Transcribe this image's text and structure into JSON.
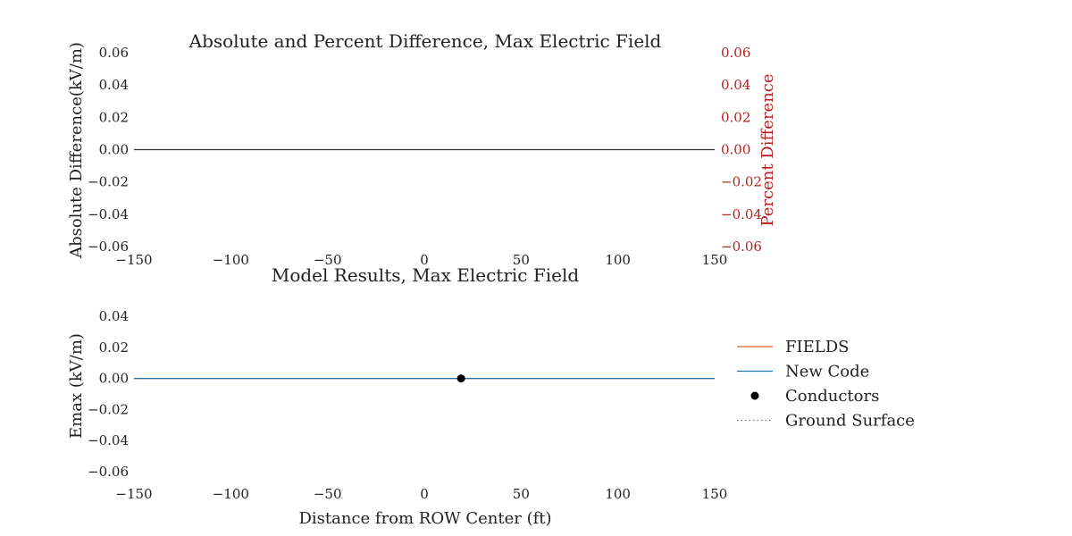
{
  "chart_data": [
    {
      "type": "line",
      "title": "Absolute and Percent Difference, Max Electric Field",
      "xlabel": "",
      "ylabel": "Absolute Difference(kV/m)",
      "y2label": "Percent Difference",
      "xlim": [
        -150,
        150
      ],
      "ylim": [
        -0.06,
        0.06
      ],
      "y2lim": [
        -0.06,
        0.06
      ],
      "xticks": [
        -150,
        -100,
        -50,
        0,
        50,
        100,
        150
      ],
      "yticks": [
        0.06,
        0.04,
        0.02,
        0.0,
        -0.02,
        -0.04,
        -0.06
      ],
      "xtick_labels": [
        "−150",
        "−100",
        "−50",
        "0",
        "50",
        "100",
        "150"
      ],
      "ytick_labels": [
        "0.06",
        "0.04",
        "0.02",
        "0.00",
        "−0.02",
        "−0.04",
        "−0.06"
      ],
      "y2tick_labels": [
        "0.06",
        "0.04",
        "0.02",
        "0.00",
        "−0.02",
        "−0.04",
        "−0.06"
      ],
      "grid": false,
      "series": [
        {
          "name": "Absolute Difference",
          "color": "#333333",
          "x": [
            -150,
            150
          ],
          "y": [
            0,
            0
          ]
        }
      ]
    },
    {
      "type": "line",
      "title": "Model Results, Max Electric Field",
      "xlabel": "Distance from ROW Center (ft)",
      "ylabel": "Emax (kV/m)",
      "xlim": [
        -150,
        150
      ],
      "ylim": [
        -0.06,
        0.04
      ],
      "xticks": [
        -150,
        -100,
        -50,
        0,
        50,
        100,
        150
      ],
      "yticks": [
        0.04,
        0.02,
        0.0,
        -0.02,
        -0.04,
        -0.06
      ],
      "xtick_labels": [
        "−150",
        "−100",
        "−50",
        "0",
        "50",
        "100",
        "150"
      ],
      "ytick_labels": [
        "0.04",
        "0.02",
        "0.00",
        "−0.02",
        "−0.04",
        "−0.06"
      ],
      "grid": false,
      "legend_position": "right",
      "series": [
        {
          "name": "FIELDS",
          "color": "#e0622a",
          "style": "solid",
          "x": [
            -150,
            150
          ],
          "y": [
            0,
            0
          ]
        },
        {
          "name": "New Code",
          "color": "#1f77b4",
          "style": "solid",
          "x": [
            -150,
            150
          ],
          "y": [
            0,
            0
          ]
        },
        {
          "name": "Conductors",
          "color": "#000000",
          "style": "marker",
          "x": [
            19
          ],
          "y": [
            0
          ]
        },
        {
          "name": "Ground Surface",
          "color": "#777777",
          "style": "dotted",
          "x": [
            -150,
            150
          ],
          "y": [
            0,
            0
          ]
        }
      ]
    }
  ]
}
